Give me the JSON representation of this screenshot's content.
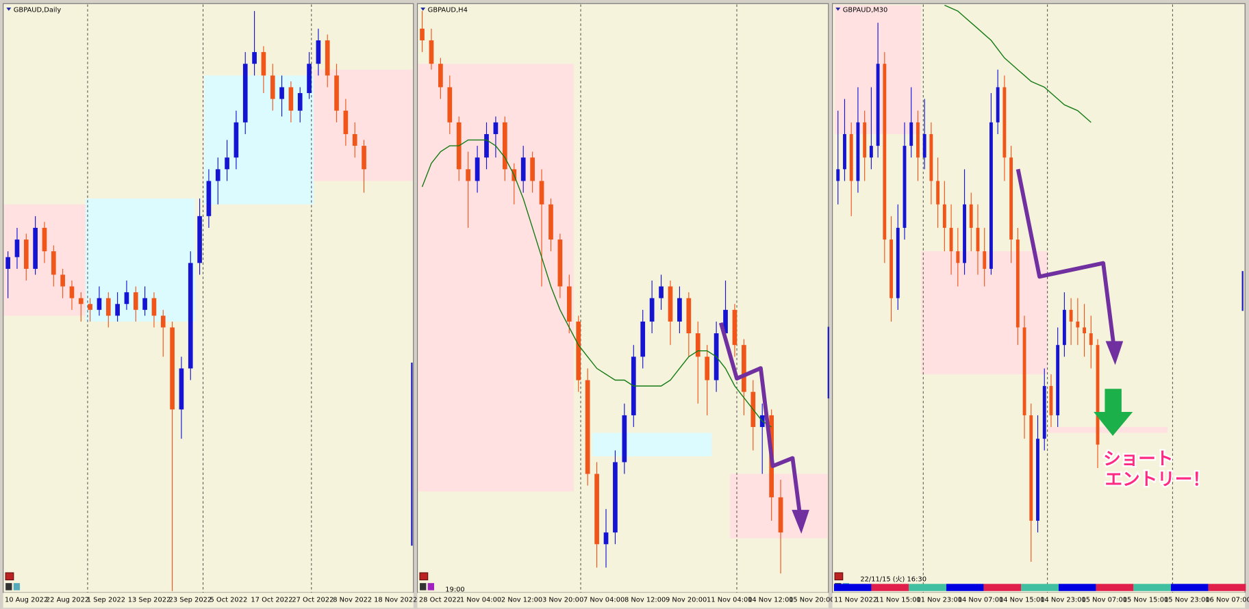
{
  "panels": [
    {
      "title": "GBPAUD,Daily",
      "ylim": [
        0,
        100
      ],
      "up_color": "#1414d2",
      "down_color": "#f0561a",
      "x_labels": [
        "10 Aug 2022",
        "22 Aug 2022",
        "1 Sep 2022",
        "13 Sep 2022",
        "23 Sep 2022",
        "5 Oct 2022",
        "17 Oct 2022",
        "27 Oct 2022",
        "8 Nov 2022",
        "18 Nov 2022"
      ],
      "candles": [
        [
          55,
          58,
          50,
          57
        ],
        [
          57,
          62,
          55,
          60
        ],
        [
          60,
          61,
          53,
          55
        ],
        [
          55,
          64,
          54,
          62
        ],
        [
          62,
          63,
          56,
          58
        ],
        [
          58,
          59,
          52,
          54
        ],
        [
          54,
          55,
          50,
          52
        ],
        [
          52,
          53,
          48,
          50
        ],
        [
          50,
          51,
          46,
          49
        ],
        [
          49,
          50,
          46,
          48
        ],
        [
          48,
          52,
          47,
          50
        ],
        [
          50,
          51,
          45,
          47
        ],
        [
          47,
          51,
          46,
          49
        ],
        [
          49,
          53,
          48,
          51
        ],
        [
          51,
          52,
          46,
          48
        ],
        [
          48,
          52,
          47,
          50
        ],
        [
          50,
          51,
          45,
          47
        ],
        [
          47,
          48,
          40,
          45
        ],
        [
          45,
          46,
          0,
          31
        ],
        [
          31,
          40,
          26,
          38
        ],
        [
          38,
          58,
          36,
          56
        ],
        [
          56,
          67,
          54,
          64
        ],
        [
          64,
          72,
          62,
          70
        ],
        [
          70,
          74,
          66,
          72
        ],
        [
          72,
          77,
          70,
          74
        ],
        [
          74,
          82,
          72,
          80
        ],
        [
          80,
          92,
          78,
          90
        ],
        [
          90,
          99,
          88,
          92
        ],
        [
          92,
          93,
          85,
          88
        ],
        [
          88,
          90,
          82,
          84
        ],
        [
          84,
          88,
          81,
          86
        ],
        [
          86,
          87,
          80,
          82
        ],
        [
          82,
          86,
          80,
          85
        ],
        [
          85,
          92,
          84,
          90
        ],
        [
          90,
          96,
          88,
          94
        ],
        [
          94,
          95,
          86,
          88
        ],
        [
          88,
          90,
          80,
          82
        ],
        [
          82,
          84,
          76,
          78
        ],
        [
          78,
          80,
          74,
          76
        ],
        [
          76,
          77,
          68,
          72
        ]
      ],
      "zones": [
        {
          "color": "#ffe1e1",
          "start": 0,
          "end": 8,
          "top": 66,
          "bottom": 47
        },
        {
          "color": "#dcfbff",
          "start": 9,
          "end": 20,
          "top": 67,
          "bottom": 46
        },
        {
          "color": "#dcfbff",
          "start": 22,
          "end": 33,
          "top": 88,
          "bottom": 66
        },
        {
          "color": "#ffe1e1",
          "start": 34,
          "end": 44,
          "top": 89,
          "bottom": 70
        }
      ]
    },
    {
      "title": "GBPAUD,H4",
      "time_label": "19:00",
      "ylim": [
        0,
        100
      ],
      "up_color": "#1414d2",
      "down_color": "#f0561a",
      "ma_color": "#137a13",
      "x_labels": [
        "28 Oct 2022",
        "1 Nov 04:00",
        "2 Nov 12:00",
        "3 Nov 20:00",
        "7 Nov 04:00",
        "8 Nov 12:00",
        "9 Nov 20:00",
        "11 Nov 04:00",
        "14 Nov 12:00",
        "15 Nov 20:00"
      ],
      "candles": [
        [
          96,
          99,
          92,
          94
        ],
        [
          94,
          96,
          89,
          90
        ],
        [
          90,
          91,
          84,
          86
        ],
        [
          86,
          88,
          78,
          80
        ],
        [
          80,
          81,
          70,
          72
        ],
        [
          72,
          75,
          62,
          70
        ],
        [
          70,
          76,
          68,
          74
        ],
        [
          74,
          80,
          72,
          78
        ],
        [
          78,
          81,
          74,
          80
        ],
        [
          80,
          81,
          70,
          72
        ],
        [
          72,
          73,
          66,
          70
        ],
        [
          70,
          76,
          68,
          74
        ],
        [
          74,
          75,
          68,
          70
        ],
        [
          70,
          72,
          52,
          66
        ],
        [
          66,
          67,
          58,
          60
        ],
        [
          60,
          61,
          50,
          52
        ],
        [
          52,
          54,
          44,
          46
        ],
        [
          46,
          47,
          34,
          36
        ],
        [
          36,
          38,
          18,
          20
        ],
        [
          20,
          22,
          4,
          8
        ],
        [
          8,
          14,
          4,
          10
        ],
        [
          10,
          24,
          8,
          22
        ],
        [
          22,
          32,
          20,
          30
        ],
        [
          30,
          42,
          28,
          40
        ],
        [
          40,
          48,
          38,
          46
        ],
        [
          46,
          53,
          44,
          50
        ],
        [
          50,
          54,
          48,
          52
        ],
        [
          52,
          53,
          42,
          46
        ],
        [
          46,
          52,
          44,
          50
        ],
        [
          50,
          51,
          40,
          44
        ],
        [
          44,
          46,
          32,
          40
        ],
        [
          40,
          42,
          30,
          36
        ],
        [
          36,
          46,
          34,
          44
        ],
        [
          44,
          53,
          42,
          48
        ],
        [
          48,
          49,
          40,
          42
        ],
        [
          42,
          43,
          30,
          34
        ],
        [
          34,
          36,
          24,
          28
        ],
        [
          28,
          32,
          20,
          30
        ],
        [
          30,
          31,
          12,
          16
        ],
        [
          16,
          19,
          3,
          10
        ]
      ],
      "ma": [
        69,
        73,
        75,
        76,
        76,
        77,
        77,
        77,
        76,
        74,
        71,
        67,
        62,
        57,
        52,
        48,
        45,
        42,
        40,
        38,
        37,
        36,
        36,
        35,
        35,
        35,
        35,
        36,
        38,
        40,
        41,
        41,
        40,
        38,
        35,
        33,
        31,
        29,
        28,
        null
      ],
      "zones": [
        {
          "color": "#ffe1e1",
          "start": 0,
          "end": 16,
          "top": 90,
          "bottom": 17
        },
        {
          "color": "#dcfbff",
          "start": 19,
          "end": 31,
          "top": 27,
          "bottom": 23
        },
        {
          "color": "#ffe1e1",
          "start": 34,
          "end": 44,
          "top": 20,
          "bottom": 9
        }
      ]
    },
    {
      "title": "GBPAUD,M30",
      "timestamp": "22/11/15 (火) 16:30",
      "annotation": [
        "ショート",
        "エントリー！"
      ],
      "ylim": [
        0,
        100
      ],
      "up_color": "#1414d2",
      "down_color": "#f0561a",
      "ma_color": "#137a13",
      "x_labels": [
        "11 Nov 2022",
        "11 Nov 15:00",
        "11 Nov 23:00",
        "14 Nov 07:00",
        "14 Nov 15:00",
        "14 Nov 23:00",
        "15 Nov 07:00",
        "15 Nov 15:00",
        "15 Nov 23:00",
        "16 Nov 07:00"
      ],
      "candles": [
        [
          70,
          82,
          66,
          72
        ],
        [
          72,
          84,
          70,
          78
        ],
        [
          78,
          80,
          64,
          70
        ],
        [
          70,
          86,
          68,
          80
        ],
        [
          80,
          82,
          70,
          74
        ],
        [
          74,
          86,
          72,
          76
        ],
        [
          76,
          97,
          74,
          90
        ],
        [
          90,
          92,
          56,
          60
        ],
        [
          60,
          64,
          46,
          50
        ],
        [
          50,
          66,
          48,
          62
        ],
        [
          62,
          80,
          60,
          76
        ],
        [
          76,
          86,
          74,
          80
        ],
        [
          80,
          82,
          70,
          74
        ],
        [
          74,
          84,
          72,
          78
        ],
        [
          78,
          80,
          66,
          70
        ],
        [
          70,
          74,
          62,
          66
        ],
        [
          66,
          70,
          58,
          62
        ],
        [
          62,
          66,
          54,
          58
        ],
        [
          58,
          62,
          52,
          56
        ],
        [
          56,
          72,
          54,
          66
        ],
        [
          66,
          68,
          58,
          62
        ],
        [
          62,
          66,
          54,
          58
        ],
        [
          58,
          62,
          52,
          55
        ],
        [
          55,
          85,
          54,
          80
        ],
        [
          80,
          89,
          78,
          86
        ],
        [
          86,
          88,
          70,
          74
        ],
        [
          74,
          76,
          56,
          60
        ],
        [
          60,
          62,
          42,
          45
        ],
        [
          45,
          47,
          26,
          30
        ],
        [
          30,
          32,
          5,
          12
        ],
        [
          12,
          30,
          10,
          26
        ],
        [
          26,
          38,
          24,
          35
        ],
        [
          35,
          37,
          28,
          30
        ],
        [
          30,
          45,
          28,
          42
        ],
        [
          42,
          51,
          40,
          48
        ],
        [
          48,
          50,
          42,
          46
        ],
        [
          46,
          50,
          42,
          45
        ],
        [
          45,
          49,
          40,
          44
        ],
        [
          44,
          47,
          38,
          42
        ],
        [
          42,
          43,
          21,
          25
        ]
      ],
      "ma": [
        null,
        null,
        null,
        null,
        null,
        null,
        null,
        null,
        null,
        null,
        null,
        null,
        null,
        null,
        null,
        null,
        100,
        99.5,
        99,
        98,
        97,
        96,
        95,
        94,
        92.5,
        91,
        90,
        89,
        88,
        87,
        86.5,
        86,
        85,
        84,
        83,
        82.5,
        82,
        81,
        80,
        null
      ],
      "zones": [
        {
          "color": "#ffe1e1",
          "start": 0,
          "end": 12,
          "top": 100,
          "bottom": 78
        },
        {
          "color": "#ffe1e1",
          "start": 13,
          "end": 31,
          "top": 58,
          "bottom": 37
        },
        {
          "color": "#ffe1e1",
          "start": 32,
          "end": 49,
          "top": 28,
          "bottom": 27
        }
      ]
    }
  ]
}
